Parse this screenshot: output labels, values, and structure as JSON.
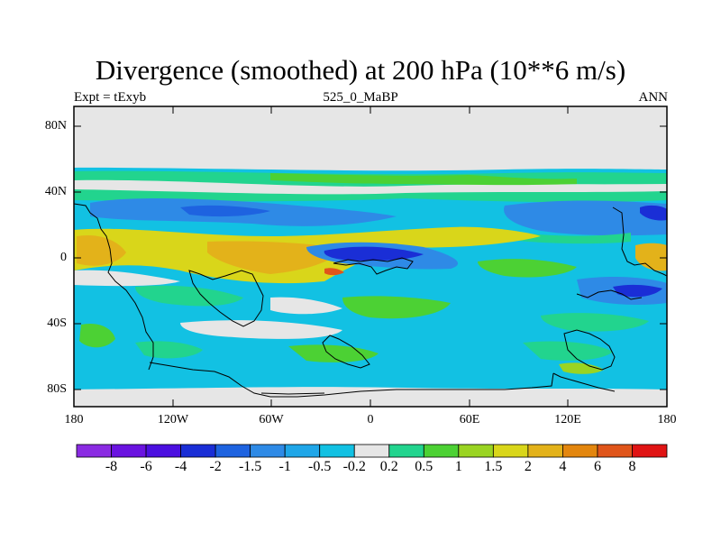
{
  "header": {
    "title": "Divergence (smoothed) at 200 hPa (10**6 m/s)",
    "left": "Expt = tExyb",
    "center": "525_0_MaBP",
    "right": "ANN"
  },
  "axes": {
    "lat_labels": [
      "80N",
      "40N",
      "0",
      "40S",
      "80S"
    ],
    "lon_labels": [
      "180",
      "120W",
      "60W",
      "0",
      "60E",
      "120E",
      "180"
    ]
  },
  "colorbar": {
    "labels": [
      "-8",
      "-6",
      "-4",
      "-2",
      "-1.5",
      "-1",
      "-0.5",
      "-0.2",
      "0.2",
      "0.5",
      "1",
      "1.5",
      "2",
      "4",
      "6",
      "8"
    ],
    "colors": [
      "#8a2be2",
      "#6a13e0",
      "#4b0fe0",
      "#1a2ed6",
      "#1e63e0",
      "#2e8ae6",
      "#1fa6e8",
      "#12c1e3",
      "#e6e6e6",
      "#22d48e",
      "#4cd134",
      "#9ad422",
      "#d9d61a",
      "#e3b21a",
      "#e3860e",
      "#e0551a",
      "#e01414"
    ]
  }
}
